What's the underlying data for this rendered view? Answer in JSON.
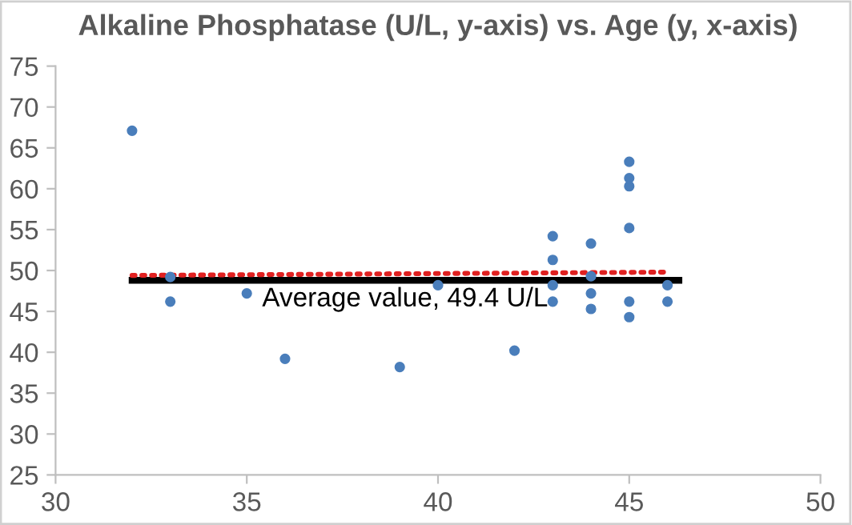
{
  "chart_data": {
    "type": "scatter",
    "title": "Alkaline Phosphatase (U/L, y-axis) vs. Age (y, x-axis)",
    "xlim": [
      30,
      50
    ],
    "xticks": [
      30,
      35,
      40,
      45,
      50
    ],
    "ylim": [
      25,
      75
    ],
    "yticks": [
      25,
      30,
      35,
      40,
      45,
      50,
      55,
      60,
      65,
      70,
      75
    ],
    "grid": false,
    "legend": false,
    "marker": "circle",
    "series": [
      {
        "color": "#4a7ebb",
        "x": [
          32,
          33,
          33,
          35,
          36,
          39,
          40,
          42,
          43,
          43,
          43,
          43,
          44,
          44,
          44,
          44,
          45,
          45,
          45,
          45,
          45,
          45,
          46,
          46
        ],
        "values": [
          67.1,
          49.2,
          46.2,
          47.2,
          39.2,
          38.2,
          48.2,
          40.2,
          54.2,
          51.3,
          48.2,
          46.2,
          53.3,
          49.3,
          47.2,
          45.3,
          63.3,
          61.3,
          60.3,
          55.2,
          46.2,
          44.3,
          48.2,
          46.2
        ]
      },
      {
        "type": "line",
        "color": "#000000",
        "line_style": "solid",
        "marker": "none",
        "x": [
          32,
          46.3
        ],
        "values": [
          48.8,
          48.8
        ]
      },
      {
        "type": "line",
        "color": "#e02020",
        "line_style": "dotted",
        "marker": "none",
        "x": [
          32,
          46
        ],
        "values": [
          49.4,
          49.8
        ]
      }
    ],
    "annotations": [
      {
        "text": "Average value, 49.4 U/L",
        "x": 35.4,
        "y": 48.8
      }
    ]
  }
}
